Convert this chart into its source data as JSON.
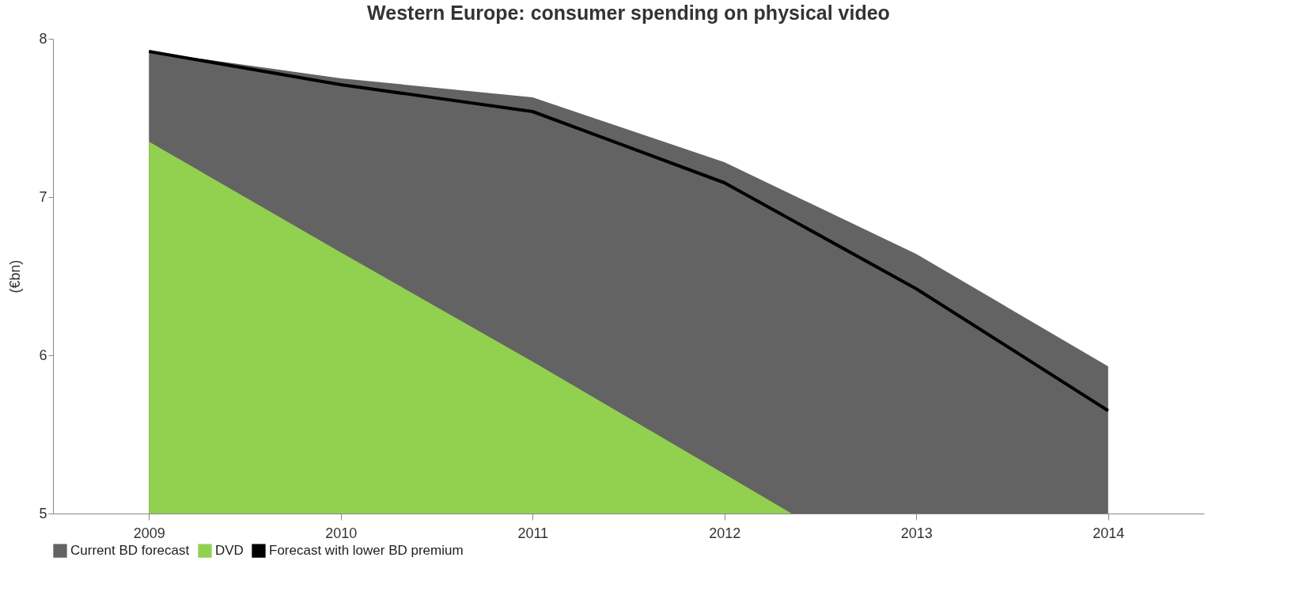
{
  "chart_data": {
    "type": "area",
    "title": "Western Europe: consumer spending on physical video",
    "ylabel": "(€bn)",
    "x": [
      2009,
      2010,
      2011,
      2012,
      2013,
      2014
    ],
    "xlim": [
      2008.5,
      2014.5
    ],
    "xticks": [
      2009,
      2010,
      2011,
      2012,
      2013,
      2014
    ],
    "ylim": [
      5,
      8
    ],
    "yticks": [
      5,
      6,
      7,
      8
    ],
    "series": [
      {
        "name": "Current BD forecast",
        "color": "#636363",
        "values": [
          7.92,
          7.75,
          7.63,
          7.22,
          6.64,
          5.93
        ]
      },
      {
        "name": "DVD",
        "color": "#92d050",
        "x": [
          2009,
          2010,
          2011,
          2012,
          2012.35
        ],
        "values": [
          7.35,
          6.65,
          5.96,
          5.25,
          5
        ]
      },
      {
        "name": "Forecast with lower BD premium",
        "type": "line",
        "color": "#000000",
        "values": [
          7.92,
          7.71,
          7.54,
          7.09,
          6.42,
          5.65
        ]
      }
    ],
    "legend": "bottom",
    "grid": false
  }
}
